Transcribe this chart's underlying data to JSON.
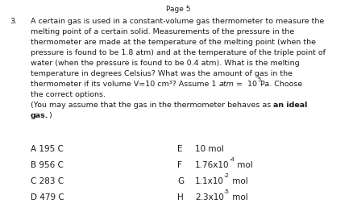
{
  "page_header": "Page 5",
  "question_number": "3.",
  "body_lines": [
    "A certain gas is used in a constant-volume gas thermometer to measure the",
    "melting point of a certain solid. Measurements of the pressure in the",
    "thermometer are made at the temperature of the melting point (when the",
    "pressure is found to be 1.8 atm) and at the temperature of the triple point of",
    "water (when the pressure is found to be 0.4 atm). What is the melting",
    "temperature in degrees Celsius? What was the amount of gas in the",
    "thermometer if its volume V=10 cm³? Assume 1 ",
    " =  10",
    "Pa. Choose",
    "the correct options.",
    "(You may assume that the gas in the thermometer behaves as ",
    "an ideal",
    "gas.",
    ")"
  ],
  "options_left": [
    [
      "A",
      "195 C"
    ],
    [
      "B",
      "956 C"
    ],
    [
      "C",
      "283 C"
    ],
    [
      "D",
      "479 C"
    ]
  ],
  "options_right_letter": [
    "E",
    "F",
    "G",
    "H"
  ],
  "options_right_base": [
    "10 mol",
    "1.76x10",
    "1.1x10",
    "2.3x10"
  ],
  "options_right_sup": [
    "",
    "-4",
    "-2",
    "-5"
  ],
  "options_right_post": [
    "",
    " mol",
    " mol",
    " mol"
  ],
  "background_color": "#ffffff",
  "text_color": "#1a1a1a",
  "fs_header": 6.5,
  "fs_body": 6.8,
  "fs_opt": 7.5,
  "fs_sup": 5.0
}
